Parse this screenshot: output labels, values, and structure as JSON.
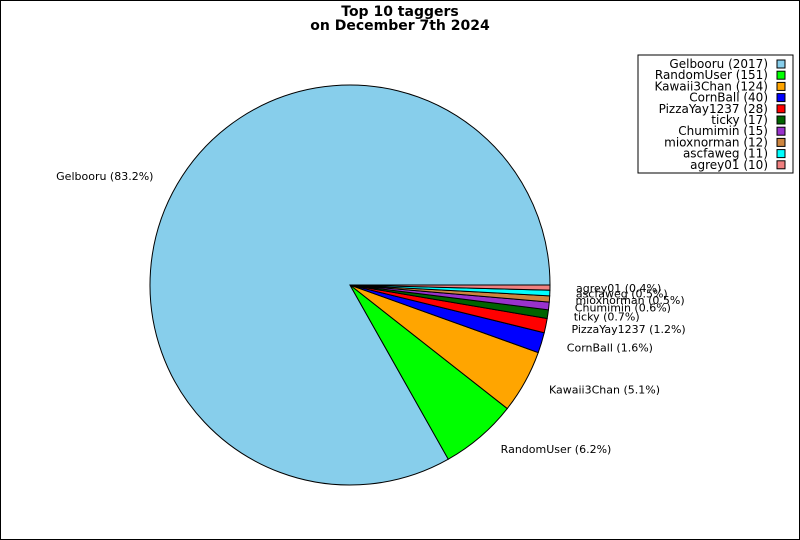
{
  "chart_data": {
    "type": "pie",
    "title": "Top 10 taggers",
    "subtitle": "on December 7th 2024",
    "legend_position": "top-right",
    "slices": [
      {
        "label": "Gelbooru",
        "value": 2017,
        "percent_label": "Gelbooru (83.2%)",
        "legend_label": "Gelbooru (2017)",
        "color": "#87ceeb"
      },
      {
        "label": "RandomUser",
        "value": 151,
        "percent_label": "RandomUser (6.2%)",
        "legend_label": "RandomUser (151)",
        "color": "#00ff00"
      },
      {
        "label": "Kawaii3Chan",
        "value": 124,
        "percent_label": "Kawaii3Chan (5.1%)",
        "legend_label": "Kawaii3Chan (124)",
        "color": "#ffa500"
      },
      {
        "label": "CornBall",
        "value": 40,
        "percent_label": "CornBall (1.6%)",
        "legend_label": "CornBall (40)",
        "color": "#0000ff"
      },
      {
        "label": "PizzaYay1237",
        "value": 28,
        "percent_label": "PizzaYay1237 (1.2%)",
        "legend_label": "PizzaYay1237 (28)",
        "color": "#ff0000"
      },
      {
        "label": "ticky",
        "value": 17,
        "percent_label": "ticky (0.7%)",
        "legend_label": "ticky (17)",
        "color": "#006400"
      },
      {
        "label": "Chumimin",
        "value": 15,
        "percent_label": "Chumimin (0.6%)",
        "legend_label": "Chumimin (15)",
        "color": "#9932cc"
      },
      {
        "label": "mioxnorman",
        "value": 12,
        "percent_label": "mioxnorman (0.5%)",
        "legend_label": "mioxnorman (12)",
        "color": "#cd853f"
      },
      {
        "label": "ascfaweg",
        "value": 11,
        "percent_label": "ascfaweg (0.5%)",
        "legend_label": "ascfaweg (11)",
        "color": "#00ffff"
      },
      {
        "label": "agrey01",
        "value": 10,
        "percent_label": "agrey01 (0.4%)",
        "legend_label": "agrey01 (10)",
        "color": "#f08080"
      }
    ]
  }
}
